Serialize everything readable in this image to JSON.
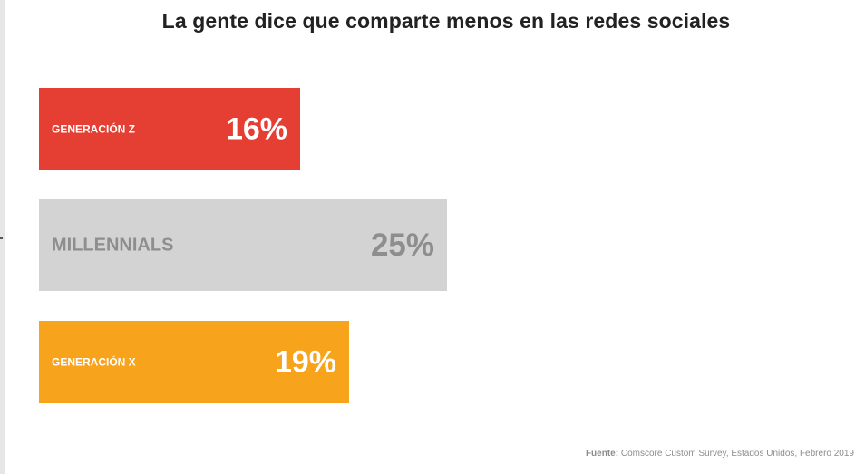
{
  "chart_data": {
    "type": "bar",
    "orientation": "horizontal",
    "title": "La gente dice que comparte menos en las redes sociales",
    "categories": [
      "GENERACIÓN Z",
      "MILLENNIALS",
      "GENERACIÓN X"
    ],
    "values": [
      16,
      25,
      19
    ],
    "value_labels": [
      "16%",
      "25%",
      "19%"
    ],
    "unit": "%",
    "xlim": [
      0,
      25
    ],
    "grid": false,
    "legend": "none",
    "colors": {
      "bars": [
        "#e53e32",
        "#d3d3d3",
        "#f7a31c"
      ],
      "category_text": [
        "#ffffff",
        "#8e8e8e",
        "#ffffff"
      ],
      "value_text": [
        "#ffffff",
        "#8e8e8e",
        "#ffffff"
      ]
    }
  },
  "source": {
    "label": "Fuente:",
    "text": "Comscore Custom Survey, Estados Unidos, Febrero 2019"
  }
}
